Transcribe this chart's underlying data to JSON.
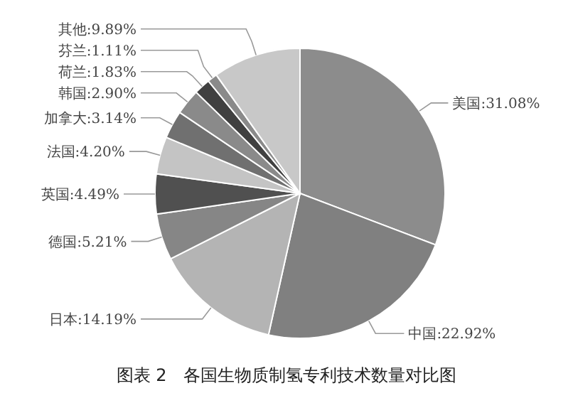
{
  "chart_data": {
    "type": "pie",
    "title": "图表 2　各国生物质制氢专利技术数量对比图",
    "categories": [
      "美国",
      "中国",
      "日本",
      "德国",
      "英国",
      "法国",
      "加拿大",
      "韩国",
      "荷兰",
      "芬兰",
      "其他"
    ],
    "values": [
      31.08,
      22.92,
      14.19,
      5.21,
      4.49,
      4.2,
      3.14,
      2.9,
      1.83,
      1.11,
      9.89
    ],
    "colors": [
      "#8c8c8c",
      "#808080",
      "#b4b4b4",
      "#868686",
      "#505050",
      "#c4c4c4",
      "#707070",
      "#8a8a8a",
      "#404040",
      "#8a8a8a",
      "#c8c8c8"
    ],
    "value_labels": [
      "31.08%",
      "22.92%",
      "14.19%",
      "5.21%",
      "4.49%",
      "4.20%",
      "3.14%",
      "2.90%",
      "1.83%",
      "1.11%",
      "9.89%"
    ]
  }
}
